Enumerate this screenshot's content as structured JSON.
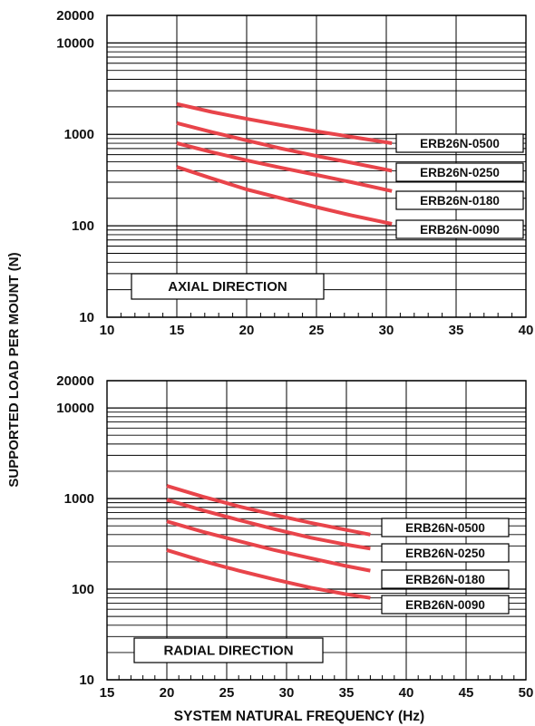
{
  "colors": {
    "curve": "#e8444a",
    "grid": "#000000",
    "background": "#ffffff"
  },
  "shared": {
    "ylabel": "SUPPORTED LOAD PER MOUNT (N)",
    "xlabel": "SYSTEM NATURAL FREQUENCY (Hz)"
  },
  "chart_data": [
    {
      "type": "line",
      "title": "",
      "annotation": "AXIAL DIRECTION",
      "xlim": [
        10,
        40
      ],
      "ylim": [
        10,
        20000
      ],
      "y_scale": "log",
      "x_ticks": [
        10,
        15,
        20,
        25,
        30,
        35,
        40
      ],
      "y_tick_labels": [
        {
          "value": 10,
          "label": "10"
        },
        {
          "value": 100,
          "label": "100"
        },
        {
          "value": 1000,
          "label": "1000"
        },
        {
          "value": 10000,
          "label": "10000"
        },
        {
          "value": 20000,
          "label": "20000"
        }
      ],
      "grid": true,
      "series": [
        {
          "name": "ERB26N-0500",
          "x": [
            15,
            17.5,
            20,
            22.5,
            25,
            27.5,
            30.4
          ],
          "y": [
            2150,
            1760,
            1480,
            1260,
            1080,
            940,
            800
          ]
        },
        {
          "name": "ERB26N-0250",
          "x": [
            15,
            17.5,
            20,
            22.5,
            25,
            27.5,
            30.4
          ],
          "y": [
            1330,
            1060,
            860,
            700,
            580,
            490,
            400
          ]
        },
        {
          "name": "ERB26N-0180",
          "x": [
            15,
            17.5,
            20,
            22.5,
            25,
            27.5,
            30.4
          ],
          "y": [
            800,
            640,
            520,
            430,
            360,
            300,
            240
          ]
        },
        {
          "name": "ERB26N-0090",
          "x": [
            15,
            17.5,
            20,
            22.5,
            25,
            27.5,
            30.4
          ],
          "y": [
            440,
            330,
            250,
            200,
            160,
            130,
            105
          ]
        }
      ]
    },
    {
      "type": "line",
      "title": "",
      "annotation": "RADIAL DIRECTION",
      "xlim": [
        15,
        50
      ],
      "ylim": [
        10,
        20000
      ],
      "y_scale": "log",
      "x_ticks": [
        15,
        20,
        25,
        30,
        35,
        40,
        45,
        50
      ],
      "y_tick_labels": [
        {
          "value": 10,
          "label": "10"
        },
        {
          "value": 100,
          "label": "100"
        },
        {
          "value": 1000,
          "label": "1000"
        },
        {
          "value": 10000,
          "label": "10000"
        },
        {
          "value": 20000,
          "label": "20000"
        }
      ],
      "grid": true,
      "series": [
        {
          "name": "ERB26N-0500",
          "x": [
            20,
            23,
            26,
            29,
            32,
            35,
            37
          ],
          "y": [
            1380,
            1050,
            820,
            660,
            540,
            450,
            400
          ]
        },
        {
          "name": "ERB26N-0250",
          "x": [
            20,
            23,
            26,
            29,
            32,
            35,
            37
          ],
          "y": [
            970,
            740,
            580,
            460,
            370,
            310,
            280
          ]
        },
        {
          "name": "ERB26N-0180",
          "x": [
            20,
            23,
            26,
            29,
            32,
            35,
            37
          ],
          "y": [
            560,
            430,
            340,
            270,
            220,
            180,
            160
          ]
        },
        {
          "name": "ERB26N-0090",
          "x": [
            20,
            23,
            26,
            29,
            32,
            35,
            37
          ],
          "y": [
            270,
            205,
            160,
            128,
            104,
            88,
            80
          ]
        }
      ]
    }
  ]
}
